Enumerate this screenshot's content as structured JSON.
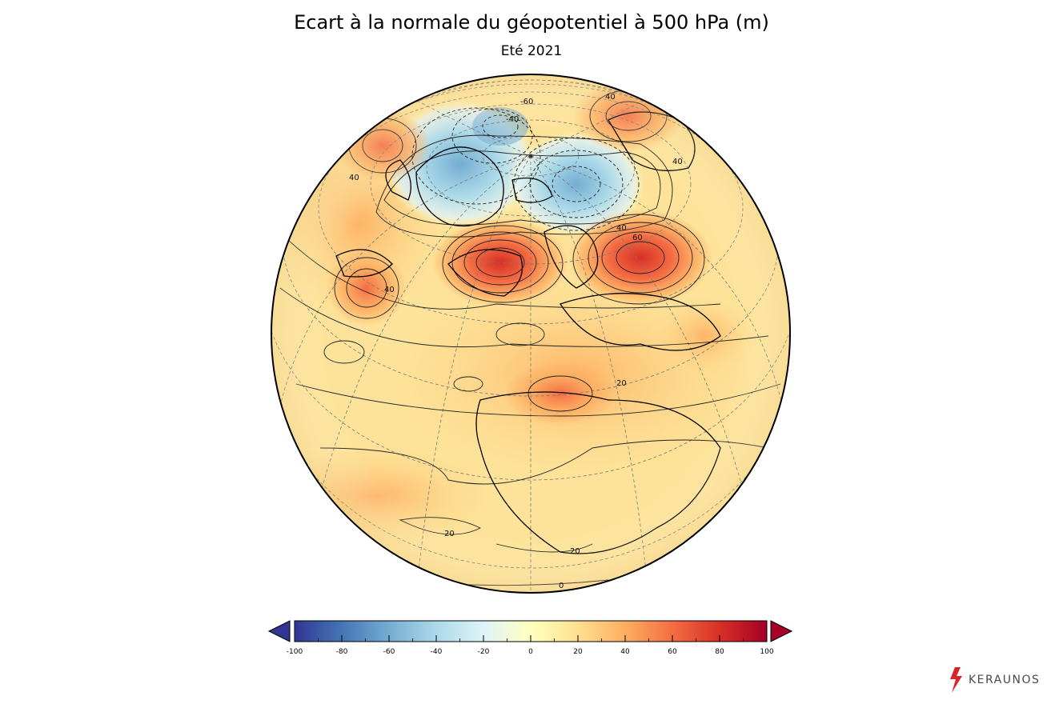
{
  "title": "Ecart à la normale du géopotentiel à 500 hPa (m)",
  "subtitle": "Eté 2021",
  "colorbar": {
    "ticks": [
      "-100",
      "-80",
      "-60",
      "-40",
      "-20",
      "0",
      "20",
      "40",
      "60",
      "80",
      "100"
    ],
    "min": -100,
    "max": 100,
    "colors": [
      "#313695",
      "#4575b4",
      "#74add1",
      "#abd9e9",
      "#e0f3f8",
      "#ffffbf",
      "#fee090",
      "#fdae61",
      "#f46d43",
      "#d73027",
      "#a50026"
    ]
  },
  "contour_labels": [
    "-60",
    "-40",
    "40",
    "40",
    "40",
    "40",
    "40",
    "60",
    "20",
    "20",
    "20",
    "0"
  ],
  "logo": {
    "text": "KERAUNOS",
    "icon": "lightning-bolt-icon"
  }
}
